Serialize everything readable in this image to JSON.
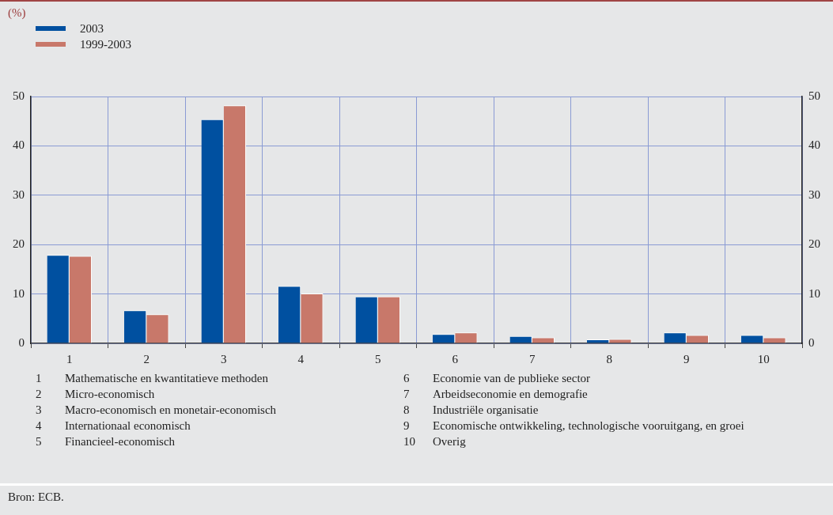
{
  "chart_data": {
    "type": "bar",
    "categories": [
      "1",
      "2",
      "3",
      "4",
      "5",
      "6",
      "7",
      "8",
      "9",
      "10"
    ],
    "series": [
      {
        "name": "2003",
        "color": "#0050a0",
        "values": [
          17.9,
          6.7,
          45.4,
          11.6,
          9.5,
          1.9,
          1.5,
          0.8,
          2.2,
          1.7
        ]
      },
      {
        "name": "1999-2003",
        "color": "#c8786a",
        "values": [
          17.7,
          5.9,
          48.2,
          10.1,
          9.5,
          2.2,
          1.2,
          0.9,
          1.7,
          1.2
        ]
      }
    ],
    "ylim": [
      0,
      50
    ],
    "yticks": [
      0,
      10,
      20,
      30,
      40,
      50
    ],
    "y2lim": [
      0,
      50
    ],
    "y2ticks": [
      0,
      10,
      20,
      30,
      40,
      50
    ],
    "grid": true,
    "legend": "top left",
    "annotations": [
      "(%)",
      "1 Mathematische en kwantitatieve methoden",
      "2 Micro-economisch",
      "3 Macro-economisch en monetair-economisch",
      "4 Internationaal economisch",
      "5 Financieel-economisch",
      "6 Economie van de publieke sector",
      "7 Arbeidseconomie en demografie",
      "8 Industriële organisatie",
      "9 Economische ontwikkeling, technologische vooruitgang, en groei",
      "10 Overig",
      "Bron: ECB."
    ]
  }
}
